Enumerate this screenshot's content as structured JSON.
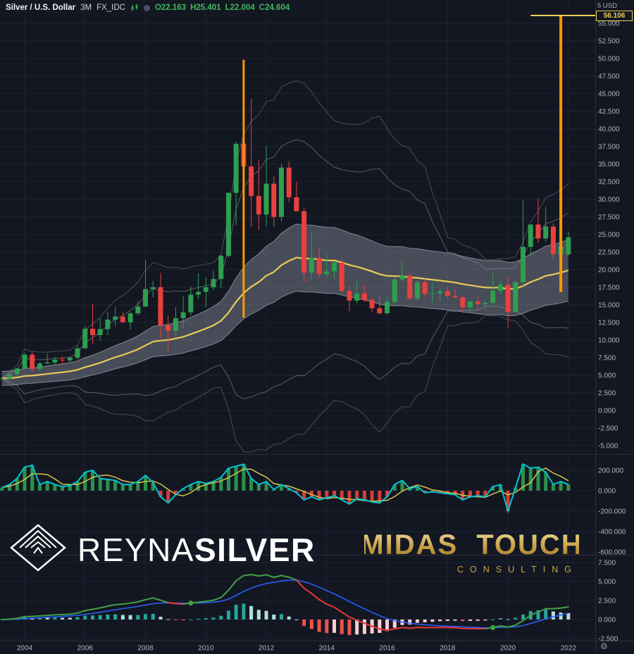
{
  "legend": {
    "symbol": "Silver / U.S. Dollar",
    "interval": "3M",
    "exchange": "FX_IDC",
    "ohlc": {
      "open": "O22.163",
      "high": "H25.401",
      "low": "L22.004",
      "close": "C24.604"
    }
  },
  "axis_header": "5 USD",
  "target_label": "56.106",
  "watermarks": {
    "reyna_part1": "REYNA",
    "reyna_part2": "SILVER",
    "midas_word1": "MIDAS",
    "midas_word2": "TOUCH",
    "midas_sub": "CONSULTING"
  },
  "gear_icon": "⚙",
  "colors": {
    "background": "#131722",
    "grid": "#1d2331",
    "border": "#2a2e39",
    "axis_text": "#b2b5be",
    "up": "#2f9e4f",
    "down": "#e8413c",
    "band_fill": "#8f97a5",
    "band_edge": "#c8ccd6",
    "band_outer": "#9298a3",
    "band_basis": "#f1d157",
    "accent_orange": "#ff9800",
    "target": "#f0cf5a",
    "legend_ohlc": "#3fba5f",
    "mom_up": "#2f9e4f",
    "mom_dn": "#e8413c",
    "mom_line": "#00c5d4",
    "mom_signal": "#d6c54a",
    "macd_up": "#43a047",
    "macd_dn": "#e53935",
    "macd_signal": "#2962ff",
    "hist_up": "#26a69a",
    "hist_up_fade": "#b2dfdb",
    "hist_dn": "#ef5350",
    "hist_dn_fade": "#ffcdd2"
  },
  "chart_data": {
    "type": "candlestick",
    "title": "Silver / U.S. Dollar",
    "interval": "3M",
    "exchange": "FX_IDC",
    "x_start": "2003-Q2",
    "x_step": "quarter",
    "last_bar": {
      "open": 22.163,
      "high": 25.401,
      "low": 22.004,
      "close": 24.604
    },
    "price_axis": {
      "min": -6.5,
      "max": 58.5,
      "ticks": [
        55,
        52.5,
        50,
        47.5,
        45,
        42.5,
        40,
        37.5,
        35,
        32.5,
        30,
        27.5,
        25,
        22.5,
        20,
        17.5,
        15,
        12.5,
        10,
        7.5,
        5,
        2.5,
        0,
        -2.5,
        -5
      ]
    },
    "time_ticks": [
      2004,
      2006,
      2008,
      2010,
      2012,
      2014,
      2016,
      2018,
      2020,
      2022
    ],
    "ohlc": [
      [
        4.55,
        4.72,
        4.31,
        4.55
      ],
      [
        4.55,
        5.3,
        4.5,
        5.15
      ],
      [
        5.15,
        6.0,
        4.85,
        5.96
      ],
      [
        5.96,
        8.24,
        5.91,
        7.92
      ],
      [
        7.92,
        8.4,
        5.49,
        5.91
      ],
      [
        5.91,
        6.91,
        5.57,
        6.67
      ],
      [
        6.67,
        8.11,
        6.58,
        6.81
      ],
      [
        6.81,
        7.63,
        6.42,
        7.21
      ],
      [
        7.21,
        7.65,
        6.64,
        7.09
      ],
      [
        7.09,
        7.6,
        6.83,
        7.49
      ],
      [
        7.49,
        9.23,
        7.26,
        8.82
      ],
      [
        8.82,
        12.01,
        8.71,
        11.6
      ],
      [
        11.6,
        15.21,
        9.48,
        10.7
      ],
      [
        10.7,
        13.1,
        9.9,
        11.55
      ],
      [
        11.55,
        14.02,
        10.69,
        12.9
      ],
      [
        12.9,
        14.73,
        11.94,
        13.33
      ],
      [
        13.33,
        14.01,
        12.43,
        12.53
      ],
      [
        12.53,
        14.05,
        11.49,
        13.79
      ],
      [
        13.79,
        15.54,
        13.5,
        14.76
      ],
      [
        14.76,
        21.34,
        14.67,
        17.23
      ],
      [
        17.23,
        18.41,
        16.08,
        17.5
      ],
      [
        17.5,
        19.53,
        10.31,
        12.1
      ],
      [
        12.1,
        13.47,
        8.4,
        11.3
      ],
      [
        11.3,
        14.68,
        10.32,
        13.11
      ],
      [
        13.11,
        16.21,
        11.73,
        13.94
      ],
      [
        13.94,
        17.63,
        13.52,
        16.45
      ],
      [
        16.45,
        19.5,
        15.82,
        16.84
      ],
      [
        16.84,
        18.93,
        14.65,
        17.5
      ],
      [
        17.5,
        19.84,
        17.08,
        18.67
      ],
      [
        18.67,
        22.12,
        17.32,
        21.96
      ],
      [
        21.96,
        30.93,
        21.7,
        30.91
      ],
      [
        30.91,
        38.18,
        26.3,
        37.87
      ],
      [
        37.87,
        49.82,
        32.3,
        34.66
      ],
      [
        34.66,
        44.28,
        26.07,
        30.45
      ],
      [
        30.45,
        35.66,
        25.65,
        27.84
      ],
      [
        27.84,
        37.48,
        26.15,
        32.21
      ],
      [
        32.21,
        33.25,
        26.1,
        27.49
      ],
      [
        27.49,
        35.03,
        26.85,
        34.49
      ],
      [
        34.49,
        35.36,
        29.62,
        30.28
      ],
      [
        30.28,
        32.48,
        28.27,
        28.3
      ],
      [
        28.3,
        28.87,
        18.17,
        19.57
      ],
      [
        19.57,
        25.12,
        18.67,
        21.68
      ],
      [
        21.68,
        23.09,
        18.89,
        19.37
      ],
      [
        19.37,
        22.18,
        18.81,
        19.75
      ],
      [
        19.75,
        21.11,
        18.65,
        20.98
      ],
      [
        20.98,
        21.58,
        16.81,
        16.98
      ],
      [
        16.98,
        17.82,
        14.12,
        15.6
      ],
      [
        15.6,
        18.5,
        15.25,
        16.6
      ],
      [
        16.6,
        17.77,
        15.45,
        15.68
      ],
      [
        15.68,
        15.98,
        13.93,
        14.52
      ],
      [
        14.52,
        16.35,
        13.62,
        13.8
      ],
      [
        13.8,
        16.19,
        13.58,
        15.43
      ],
      [
        15.43,
        18.93,
        14.78,
        18.61
      ],
      [
        18.61,
        21.14,
        18.21,
        19.17
      ],
      [
        19.17,
        19.6,
        15.63,
        15.92
      ],
      [
        15.92,
        18.54,
        15.62,
        18.21
      ],
      [
        18.21,
        18.66,
        16.06,
        16.57
      ],
      [
        16.57,
        18.21,
        15.19,
        16.66
      ],
      [
        16.66,
        17.41,
        15.57,
        16.93
      ],
      [
        16.93,
        17.7,
        16.07,
        16.27
      ],
      [
        16.27,
        17.32,
        15.92,
        16.06
      ],
      [
        16.06,
        16.22,
        13.9,
        14.66
      ],
      [
        14.66,
        15.52,
        13.86,
        15.47
      ],
      [
        15.47,
        16.2,
        14.27,
        15.11
      ],
      [
        15.11,
        15.55,
        14.26,
        15.29
      ],
      [
        15.29,
        19.65,
        14.9,
        17.0
      ],
      [
        17.0,
        18.37,
        16.52,
        17.85
      ],
      [
        17.85,
        18.93,
        11.64,
        13.98
      ],
      [
        13.98,
        18.42,
        13.87,
        18.21
      ],
      [
        18.21,
        29.86,
        17.58,
        23.24
      ],
      [
        23.24,
        26.11,
        21.88,
        26.4
      ],
      [
        26.4,
        30.1,
        23.74,
        24.42
      ],
      [
        24.42,
        28.9,
        23.96,
        26.13
      ],
      [
        26.13,
        26.64,
        21.41,
        22.15
      ],
      [
        22.15,
        25.4,
        21.41,
        23.31
      ],
      [
        22.163,
        25.401,
        22.004,
        24.604
      ]
    ],
    "overlays": {
      "bands": {
        "basis_ema_length": 30,
        "envelope_pct": 0.22,
        "sd_window": 20,
        "sd_mults": [
          2,
          3
        ]
      },
      "annotations": {
        "spike_2011": {
          "quarter_index": 32,
          "from_price": 49.8,
          "to_price": 13.2
        },
        "projection_2022": {
          "quarter_index": 74,
          "from_price": 56.106,
          "to_price": 16.8
        },
        "target_line": {
          "price": 56.106,
          "from_quarter_index": 70
        }
      }
    },
    "panes": [
      {
        "name": "momentum-oscillator",
        "ticks": [
          200,
          0,
          -200,
          -400,
          -600
        ],
        "values": [
          30,
          60,
          120,
          230,
          250,
          60,
          90,
          60,
          40,
          50,
          90,
          180,
          200,
          120,
          110,
          100,
          60,
          60,
          90,
          150,
          80,
          -60,
          -120,
          -40,
          20,
          60,
          90,
          70,
          90,
          130,
          220,
          240,
          260,
          120,
          60,
          90,
          10,
          60,
          20,
          -20,
          -90,
          -60,
          -90,
          -70,
          -50,
          -90,
          -130,
          -80,
          -90,
          -110,
          -120,
          -60,
          60,
          100,
          20,
          40,
          -20,
          -10,
          -20,
          -30,
          -40,
          -90,
          -60,
          -50,
          -60,
          40,
          60,
          -200,
          30,
          260,
          220,
          230,
          180,
          60,
          90,
          60
        ]
      },
      {
        "name": "macd",
        "ticks": [
          7.5,
          5,
          2.5,
          0,
          -2.5
        ],
        "params": {
          "fast": 12,
          "slow": 26,
          "signal": 9
        }
      }
    ]
  }
}
